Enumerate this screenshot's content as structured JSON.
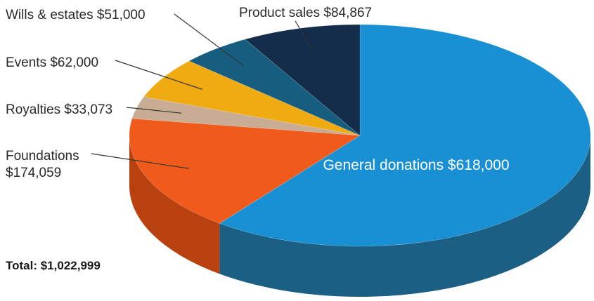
{
  "chart_data": {
    "type": "pie",
    "title": "",
    "start": "12 o'clock, clockwise",
    "slices": [
      {
        "label": "General donations",
        "value": 618000,
        "value_text": "$618,000",
        "color": "#1a90d4",
        "side_color": "#1b5f85"
      },
      {
        "label": "Foundations",
        "value": 174059,
        "value_text": "$174,059",
        "color": "#f05a1a",
        "side_color": "#b8410f"
      },
      {
        "label": "Royalties",
        "value": 33073,
        "value_text": "$33,073",
        "color": "#c8ad94",
        "side_color": "#96806b"
      },
      {
        "label": "Events",
        "value": 62000,
        "value_text": "$62,000",
        "color": "#f0aa12",
        "side_color": "#b47f0b"
      },
      {
        "label": "Wills & estates",
        "value": 51000,
        "value_text": "$51,000",
        "color": "#175d80",
        "side_color": "#0f3f57"
      },
      {
        "label": "Product sales",
        "value": 84867,
        "value_text": "$84,867",
        "color": "#132d4b",
        "side_color": "#0b1c30"
      }
    ],
    "total_label": "Total: $1,022,999"
  }
}
